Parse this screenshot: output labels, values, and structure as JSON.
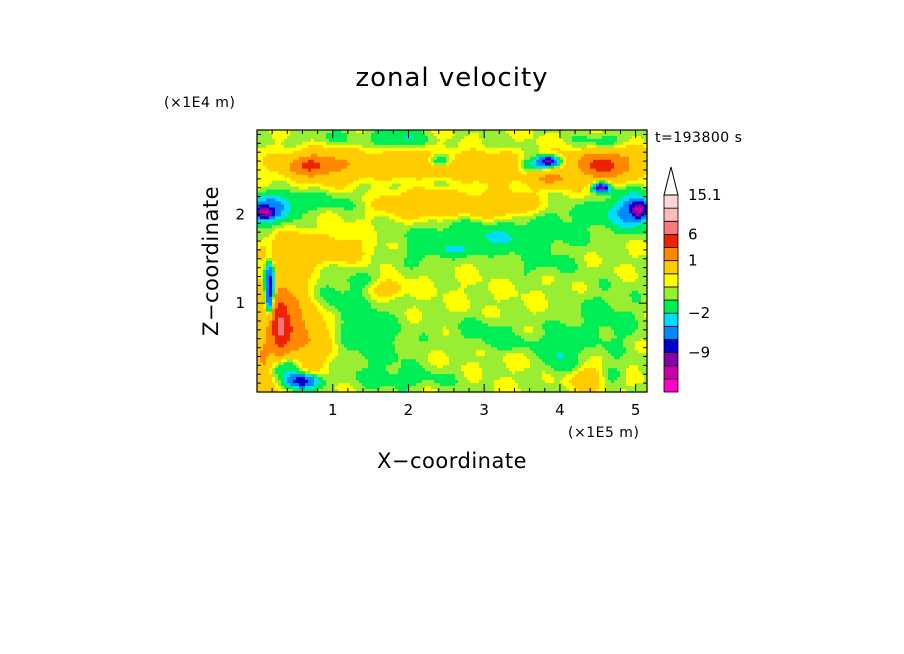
{
  "chart_data": {
    "type": "heatmap",
    "title": "zonal velocity",
    "xlabel": "X−coordinate",
    "ylabel": "Z−coordinate",
    "x_scale_label": "(×1E5 m)",
    "y_scale_label": "(×1E4 m)",
    "time_label": "t=193800 s",
    "xlim": [
      0,
      5.15
    ],
    "ylim": [
      0,
      2.95
    ],
    "x_ticks": [
      1,
      2,
      3,
      4,
      5
    ],
    "x_tick_labels": [
      "1",
      "2",
      "3",
      "4",
      "5"
    ],
    "y_ticks": [
      1,
      2
    ],
    "y_tick_labels": [
      "1",
      "2"
    ],
    "grid": false,
    "colorbar": {
      "position": "right",
      "levels": [
        {
          "value": -15,
          "color": "#ff00cc"
        },
        {
          "value": -12,
          "color": "#cc00aa"
        },
        {
          "value": -9,
          "color": "#8800aa"
        },
        {
          "value": -6,
          "color": "#0000cc"
        },
        {
          "value": -4,
          "color": "#0088ff"
        },
        {
          "value": -2,
          "color": "#00ddff"
        },
        {
          "value": -1,
          "color": "#00ee55"
        },
        {
          "value": 0,
          "color": "#99ee33"
        },
        {
          "value": 0.5,
          "color": "#ffff00"
        },
        {
          "value": 1,
          "color": "#ffcc00"
        },
        {
          "value": 3,
          "color": "#ff8800"
        },
        {
          "value": 6,
          "color": "#ee2200"
        },
        {
          "value": 9,
          "color": "#ff7777"
        },
        {
          "value": 12,
          "color": "#ffbbbb"
        },
        {
          "value": 15.1,
          "color": "#ffd6d6"
        }
      ],
      "tick_labels": [
        {
          "value": 15.1,
          "label": "15.1"
        },
        {
          "value": 6,
          "label": "6"
        },
        {
          "value": 1,
          "label": "1"
        },
        {
          "value": -2,
          "label": "−2"
        },
        {
          "value": -9,
          "label": "−9"
        }
      ],
      "extend": "max"
    },
    "field": {
      "background": 0.5,
      "features": [
        {
          "x": 2.7,
          "z": 2.55,
          "rx": 1.2,
          "rz": 0.22,
          "v": 1.8
        },
        {
          "x": 0.9,
          "z": 2.55,
          "rx": 0.55,
          "rz": 0.18,
          "v": 2.5
        },
        {
          "x": 0.7,
          "z": 2.55,
          "rx": 0.25,
          "rz": 0.09,
          "v": 4.5
        },
        {
          "x": 4.55,
          "z": 2.55,
          "rx": 0.25,
          "rz": 0.12,
          "v": 5
        },
        {
          "x": 4.7,
          "z": 2.6,
          "rx": 0.5,
          "rz": 0.2,
          "v": 2.5
        },
        {
          "x": 3.9,
          "z": 2.4,
          "rx": 0.3,
          "rz": 0.1,
          "v": 2.5
        },
        {
          "x": 2.2,
          "z": 2.12,
          "rx": 0.5,
          "rz": 0.13,
          "v": 2.5
        },
        {
          "x": 3.2,
          "z": 2.1,
          "rx": 0.45,
          "rz": 0.12,
          "v": 2.2
        },
        {
          "x": 4.6,
          "z": 2.8,
          "rx": 0.4,
          "rz": 0.12,
          "v": -1.5
        },
        {
          "x": 1.0,
          "z": 2.85,
          "rx": 0.6,
          "rz": 0.12,
          "v": -0.6
        },
        {
          "x": 2.3,
          "z": 2.35,
          "rx": 0.8,
          "rz": 0.1,
          "v": -0.7
        },
        {
          "x": 3.0,
          "z": 2.75,
          "rx": 0.7,
          "rz": 0.13,
          "v": -0.7
        },
        {
          "x": 1.9,
          "z": 2.85,
          "rx": 0.35,
          "rz": 0.1,
          "v": -1.6
        },
        {
          "x": 2.4,
          "z": 2.6,
          "rx": 0.18,
          "rz": 0.08,
          "v": -2.5
        },
        {
          "x": 3.7,
          "z": 2.55,
          "rx": 0.25,
          "rz": 0.09,
          "v": -2.8
        },
        {
          "x": 3.85,
          "z": 2.6,
          "rx": 0.12,
          "rz": 0.05,
          "v": -7
        },
        {
          "x": 0.15,
          "z": 2.05,
          "rx": 0.3,
          "rz": 0.16,
          "v": -3
        },
        {
          "x": 0.1,
          "z": 2.02,
          "rx": 0.1,
          "rz": 0.06,
          "v": -8
        },
        {
          "x": 4.95,
          "z": 2.05,
          "rx": 0.3,
          "rz": 0.2,
          "v": -3
        },
        {
          "x": 5.05,
          "z": 2.05,
          "rx": 0.1,
          "rz": 0.08,
          "v": -8
        },
        {
          "x": 0.6,
          "z": 2.15,
          "rx": 0.8,
          "rz": 0.12,
          "v": -0.9
        },
        {
          "x": 4.3,
          "z": 2.0,
          "rx": 0.7,
          "rz": 0.14,
          "v": -0.8
        },
        {
          "x": 3.1,
          "z": 1.75,
          "rx": 1.1,
          "rz": 0.16,
          "v": -1.5
        },
        {
          "x": 2.8,
          "z": 1.6,
          "rx": 0.5,
          "rz": 0.06,
          "v": -0.8
        },
        {
          "x": 4.55,
          "z": 2.3,
          "rx": 0.1,
          "rz": 0.05,
          "v": -7
        },
        {
          "x": 0.8,
          "z": 1.6,
          "rx": 0.7,
          "rz": 0.18,
          "v": 1.6
        },
        {
          "x": 2.2,
          "z": 1.55,
          "rx": 0.4,
          "rz": 0.15,
          "v": -0.6
        },
        {
          "x": 0.35,
          "z": 0.8,
          "rx": 0.28,
          "rz": 0.55,
          "v": 3.5
        },
        {
          "x": 0.3,
          "z": 0.75,
          "rx": 0.12,
          "rz": 0.28,
          "v": 5.5
        },
        {
          "x": 0.65,
          "z": 0.6,
          "rx": 0.35,
          "rz": 0.35,
          "v": 2.0
        },
        {
          "x": 0.17,
          "z": 1.15,
          "rx": 0.06,
          "rz": 0.28,
          "v": -8
        },
        {
          "x": 0.38,
          "z": 0.3,
          "rx": 0.2,
          "rz": 0.15,
          "v": -3.5
        },
        {
          "x": 0.6,
          "z": 0.12,
          "rx": 0.2,
          "rz": 0.08,
          "v": -6
        },
        {
          "x": 0.08,
          "z": 0.3,
          "rx": 0.08,
          "rz": 0.3,
          "v": 2.5
        },
        {
          "x": 1.2,
          "z": 1.0,
          "rx": 0.5,
          "rz": 0.45,
          "v": -0.9
        },
        {
          "x": 1.6,
          "z": 0.5,
          "rx": 0.5,
          "rz": 0.35,
          "v": -0.7
        },
        {
          "x": 3.0,
          "z": 0.7,
          "rx": 0.55,
          "rz": 0.15,
          "v": -0.7
        },
        {
          "x": 4.0,
          "z": 0.45,
          "rx": 0.2,
          "rz": 0.25,
          "v": -1.6
        },
        {
          "x": 3.3,
          "z": 0.55,
          "rx": 0.4,
          "rz": 0.09,
          "v": -0.8
        },
        {
          "x": 4.6,
          "z": 0.8,
          "rx": 0.5,
          "rz": 0.4,
          "v": -0.8
        },
        {
          "x": 3.75,
          "z": 1.45,
          "rx": 0.5,
          "rz": 0.15,
          "v": -0.7
        },
        {
          "x": 2.0,
          "z": 0.15,
          "rx": 0.7,
          "rz": 0.12,
          "v": -0.7
        },
        {
          "x": 4.7,
          "z": 0.2,
          "rx": 0.15,
          "rz": 0.1,
          "v": -0.8
        },
        {
          "x": 1.7,
          "z": 1.15,
          "rx": 0.25,
          "rz": 0.1,
          "v": 1.6
        },
        {
          "x": 4.35,
          "z": 0.15,
          "rx": 0.25,
          "rz": 0.12,
          "v": 1.5
        }
      ]
    }
  }
}
